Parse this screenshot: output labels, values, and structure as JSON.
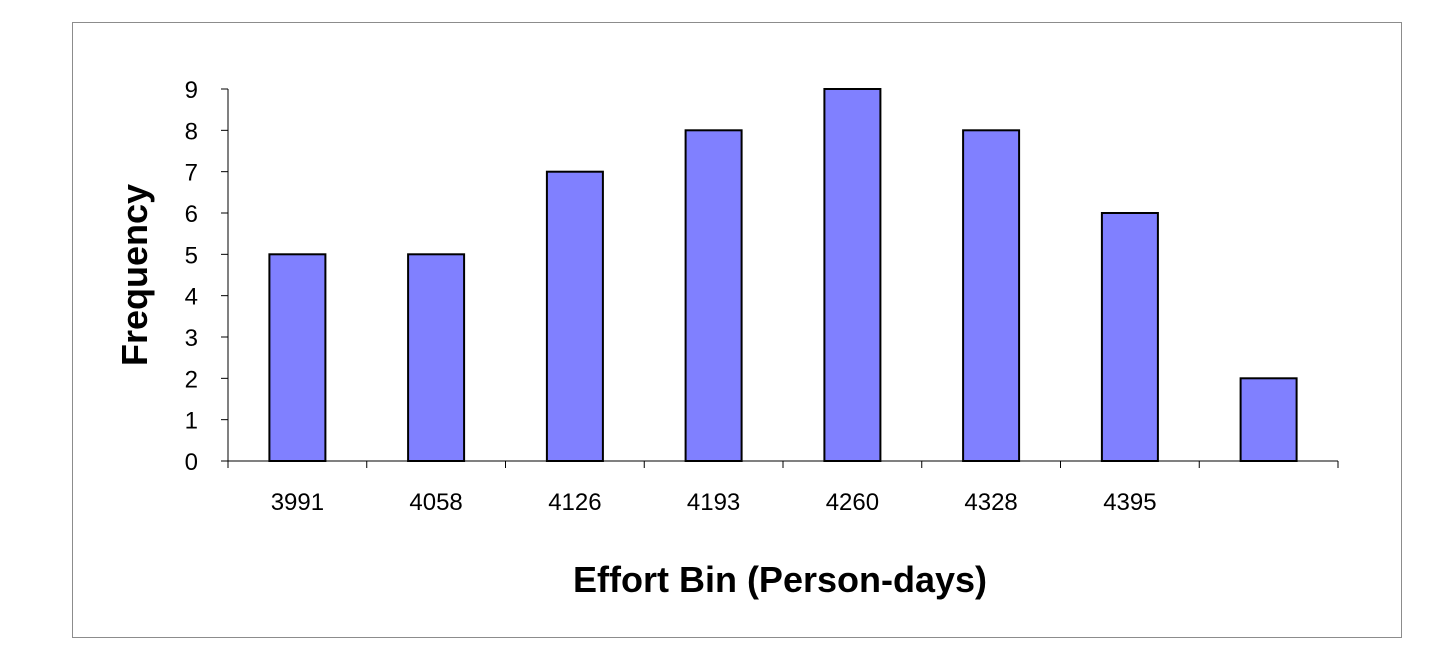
{
  "chart_data": {
    "type": "bar",
    "categories": [
      "3991",
      "4058",
      "4126",
      "4193",
      "4260",
      "4328",
      "4395",
      ""
    ],
    "values": [
      5,
      5,
      7,
      8,
      9,
      8,
      6,
      2
    ],
    "title": "",
    "xlabel": "Effort Bin (Person-days)",
    "ylabel": "Frequency",
    "ylim": [
      0,
      9
    ],
    "yticks": [
      "0",
      "1",
      "2",
      "3",
      "4",
      "5",
      "6",
      "7",
      "8",
      "9"
    ],
    "grid": false,
    "legend": "none",
    "colors": {
      "bar_fill": "#8080ff",
      "bar_stroke": "#000000",
      "axis": "#000000",
      "frame": "#8c8c8c"
    }
  }
}
